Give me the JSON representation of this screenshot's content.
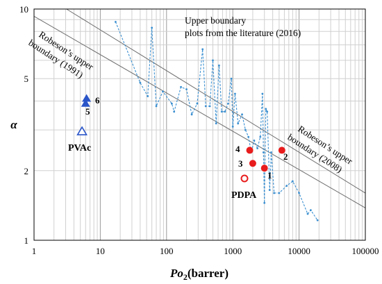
{
  "chart_data": {
    "type": "scatter",
    "xlabel_italic": "Po",
    "xlabel_sub": "2",
    "xlabel_rest": "(barrer)",
    "ylabel": "α",
    "x_scale": "log",
    "y_scale": "log",
    "xlim": [
      1,
      100000
    ],
    "ylim": [
      1,
      10
    ],
    "grid": true,
    "x_ticks": [
      {
        "value": 1,
        "label": "1"
      },
      {
        "value": 10,
        "label": "10"
      },
      {
        "value": 100,
        "label": "100"
      },
      {
        "value": 1000,
        "label": "1000"
      },
      {
        "value": 10000,
        "label": "10000"
      },
      {
        "value": 100000,
        "label": "100000"
      }
    ],
    "y_ticks": [
      {
        "value": 1,
        "label": "1"
      },
      {
        "value": 2,
        "label": "2"
      },
      {
        "value": 5,
        "label": "5"
      },
      {
        "value": 10,
        "label": "10"
      }
    ],
    "boundaries": [
      {
        "label_line1": "Robeson’s upper",
        "label_line2": "boundary (1991)",
        "points": [
          [
            1,
            9.3
          ],
          [
            100000,
            1.38
          ]
        ]
      },
      {
        "label_line1": "Robeson’s upper",
        "label_line2": "boundary (2008)",
        "points": [
          [
            1,
            12.2
          ],
          [
            100000,
            1.6
          ]
        ]
      }
    ],
    "literature_2016": {
      "label_line1": "Upper boundary",
      "label_line2": "plots from the  literature (2016)",
      "color": "#3a8fd0",
      "points": [
        [
          17,
          8.8
        ],
        [
          40,
          4.8
        ],
        [
          52,
          4.2
        ],
        [
          60,
          8.3
        ],
        [
          70,
          3.8
        ],
        [
          88,
          4.4
        ],
        [
          120,
          3.9
        ],
        [
          130,
          3.6
        ],
        [
          165,
          4.6
        ],
        [
          200,
          4.5
        ],
        [
          240,
          3.5
        ],
        [
          290,
          3.9
        ],
        [
          350,
          6.7
        ],
        [
          390,
          3.8
        ],
        [
          450,
          3.8
        ],
        [
          500,
          6.0
        ],
        [
          560,
          3.2
        ],
        [
          620,
          5.7
        ],
        [
          680,
          3.6
        ],
        [
          760,
          3.6
        ],
        [
          850,
          3.9
        ],
        [
          950,
          5.0
        ],
        [
          1000,
          3.1
        ],
        [
          1080,
          4.3
        ],
        [
          1200,
          3.2
        ],
        [
          1380,
          3.5
        ],
        [
          1550,
          3.0
        ],
        [
          1720,
          2.8
        ],
        [
          1900,
          2.4
        ],
        [
          2100,
          2.7
        ],
        [
          2350,
          2.5
        ],
        [
          2600,
          2.8
        ],
        [
          2800,
          4.3
        ],
        [
          2900,
          2.4
        ],
        [
          3000,
          1.45
        ],
        [
          3150,
          3.7
        ],
        [
          3300,
          3.6
        ],
        [
          3600,
          1.65
        ],
        [
          3800,
          2.4
        ],
        [
          4200,
          1.6
        ],
        [
          5000,
          1.6
        ],
        [
          6500,
          1.72
        ],
        [
          8000,
          1.8
        ],
        [
          10000,
          1.6
        ],
        [
          13500,
          1.3
        ],
        [
          15000,
          1.35
        ],
        [
          19000,
          1.22
        ]
      ]
    },
    "present_points": [
      {
        "label": "1",
        "x": 3000,
        "y": 2.05,
        "filled": true,
        "color": "#e81c1c"
      },
      {
        "label": "2",
        "x": 5500,
        "y": 2.45,
        "filled": true,
        "color": "#e81c1c"
      },
      {
        "label": "3",
        "x": 2000,
        "y": 2.15,
        "filled": true,
        "color": "#e81c1c"
      },
      {
        "label": "4",
        "x": 1800,
        "y": 2.45,
        "filled": true,
        "color": "#e81c1c"
      },
      {
        "label": "PDPA",
        "x": 1500,
        "y": 1.85,
        "filled": false,
        "color": "#e81c1c"
      }
    ],
    "pvac_points": [
      {
        "label": "6",
        "x": 6.2,
        "y": 4.1,
        "filled": true,
        "color": "#2a55c8"
      },
      {
        "label": "5",
        "x": 6.0,
        "y": 3.9,
        "filled": true,
        "color": "#2a55c8"
      },
      {
        "label": "PVAc",
        "x": 5.3,
        "y": 2.95,
        "filled": false,
        "color": "#2a55c8"
      }
    ]
  }
}
